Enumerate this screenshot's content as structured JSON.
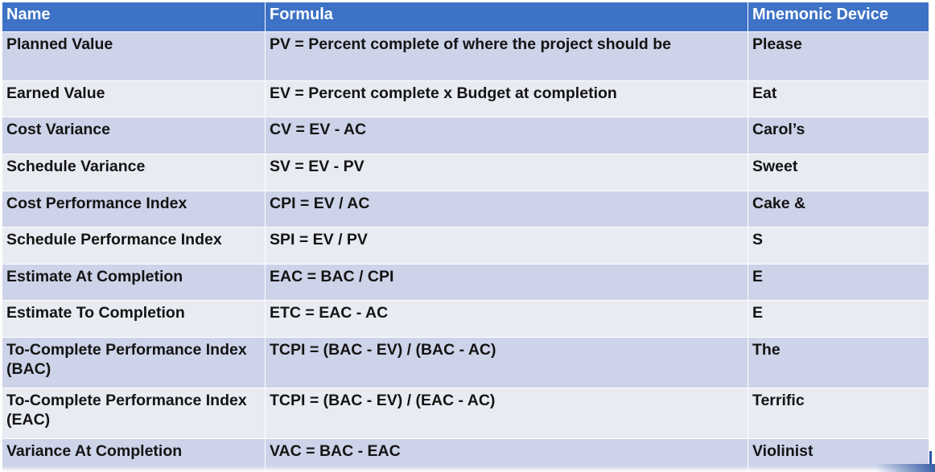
{
  "table": {
    "headers": [
      "Name",
      "Formula",
      "Mnemonic Device"
    ],
    "rows": [
      {
        "name": "Planned Value",
        "formula": "PV = Percent complete of where the project should be",
        "mnemonic": "Please",
        "height": 60
      },
      {
        "name": "Earned Value",
        "formula": "EV = Percent complete x Budget at completion",
        "mnemonic": "Eat",
        "height": 44
      },
      {
        "name": "Cost Variance",
        "formula": "CV = EV - AC",
        "mnemonic": "Carol’s",
        "height": 45
      },
      {
        "name": "Schedule Variance",
        "formula": "SV = EV - PV",
        "mnemonic": "Sweet",
        "height": 45
      },
      {
        "name": "Cost Performance Index",
        "formula": "CPI = EV / AC",
        "mnemonic": "Cake &",
        "height": 44
      },
      {
        "name": "Schedule Performance Index",
        "formula": "SPI = EV / PV",
        "mnemonic": "S",
        "height": 45
      },
      {
        "name": "Estimate At Completion",
        "formula": "EAC = BAC / CPI",
        "mnemonic": "E",
        "height": 44
      },
      {
        "name": "Estimate To Completion",
        "formula": "ETC = EAC - AC",
        "mnemonic": "E",
        "height": 45
      },
      {
        "name": "To-Complete Performance Index (BAC)",
        "formula": "TCPI = (BAC - EV) / (BAC - AC)",
        "mnemonic": "The",
        "height": 62
      },
      {
        "name": "To-Complete Performance Index (EAC)",
        "formula": "TCPI = (BAC - EV) / (EAC - AC)",
        "mnemonic": "Terrific",
        "height": 62
      },
      {
        "name": "Variance At Completion",
        "formula": "VAC = BAC - EAC",
        "mnemonic": "Violinist",
        "height": 50
      }
    ]
  },
  "colors": {
    "header_bg": "#3d72c6",
    "row_dark": "#cdd3e8",
    "row_light": "#e9ebf3"
  }
}
